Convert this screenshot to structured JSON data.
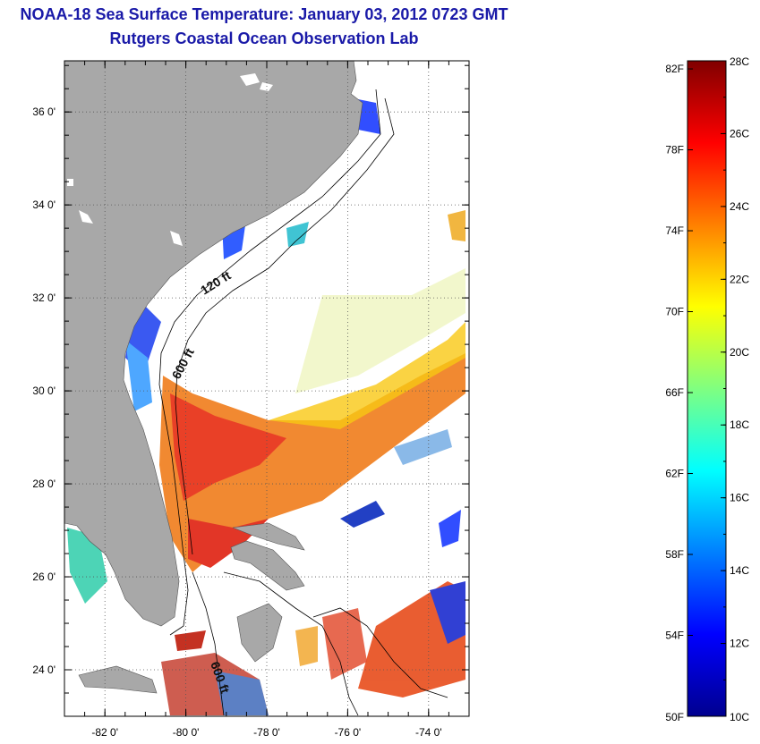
{
  "title": "NOAA-18 Sea Surface Temperature:  January 03, 2012 0723 GMT",
  "subtitle": "Rutgers Coastal Ocean Observation Lab",
  "map": {
    "lat_range": [
      23.0,
      37.1
    ],
    "lon_range": [
      -83.0,
      -73.0
    ],
    "lat_ticks": [
      {
        "value": 24,
        "label": "24 0'"
      },
      {
        "value": 26,
        "label": "26 0'"
      },
      {
        "value": 28,
        "label": "28 0'"
      },
      {
        "value": 30,
        "label": "30 0'"
      },
      {
        "value": 32,
        "label": "32 0'"
      },
      {
        "value": 34,
        "label": "34 0'"
      },
      {
        "value": 36,
        "label": "36 0'"
      }
    ],
    "lon_ticks": [
      {
        "value": -82,
        "label": "-82 0'"
      },
      {
        "value": -80,
        "label": "-80 0'"
      },
      {
        "value": -78,
        "label": "-78 0'"
      },
      {
        "value": -76,
        "label": "-76 0'"
      },
      {
        "value": -74,
        "label": "-74 0'"
      }
    ],
    "depth_labels": [
      "120 ft",
      "600 ft",
      "600 ft"
    ],
    "colors": {
      "land": "#a8a8a8",
      "ocean": "#ffffff",
      "grid": "#555555"
    }
  },
  "colorbar": {
    "range_c": [
      10,
      28
    ],
    "celsius_labels": [
      "28C",
      "26C",
      "24C",
      "22C",
      "20C",
      "18C",
      "16C",
      "14C",
      "12C",
      "10C"
    ],
    "fahrenheit_labels": [
      "82F",
      "78F",
      "74F",
      "70F",
      "66F",
      "62F",
      "58F",
      "54F",
      "50F"
    ],
    "colormap": "jet"
  }
}
